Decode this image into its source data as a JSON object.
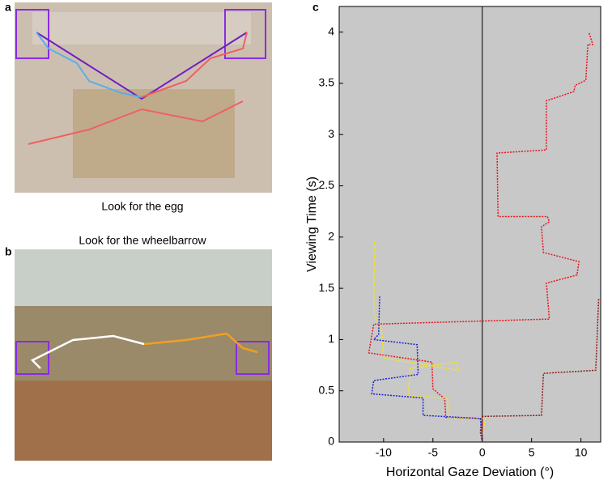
{
  "panels": {
    "a": {
      "label": "a",
      "caption": "Look for the egg"
    },
    "b": {
      "label": "b",
      "caption": "Look for the wheelbarrow"
    },
    "c": {
      "label": "c"
    }
  },
  "chart_data": {
    "type": "line",
    "xlabel": "Horizontal Gaze Deviation (°)",
    "ylabel": "Viewing Time (s)",
    "xlim": [
      -14.5,
      12
    ],
    "ylim": [
      0,
      4.25
    ],
    "xticks": [
      -10,
      -5,
      0,
      5,
      10
    ],
    "yticks": [
      0,
      0.5,
      1,
      1.5,
      2,
      2.5,
      3,
      3.5,
      4
    ],
    "series": [
      {
        "color": "#e8141b",
        "x": [
          0,
          0,
          -3.7,
          -3.8,
          -5,
          -5.1,
          -11.5,
          -11,
          6.8,
          6.5,
          9.6,
          9.8,
          6.2,
          6.0,
          6.8,
          6.6,
          1.6,
          1.5,
          6.5,
          6.5,
          9.3,
          9.4,
          10.5,
          10.7,
          11.2,
          10.8
        ],
        "values": [
          0.05,
          0.23,
          0.24,
          0.42,
          0.52,
          0.78,
          0.87,
          1.15,
          1.2,
          1.55,
          1.63,
          1.76,
          1.85,
          2.1,
          2.15,
          2.2,
          2.2,
          2.82,
          2.85,
          3.33,
          3.42,
          3.48,
          3.53,
          3.88,
          3.88,
          4.0
        ]
      },
      {
        "color": "#8b1a1a",
        "x": [
          0,
          -0.2,
          0,
          6,
          6.2,
          11.5,
          11.8
        ],
        "values": [
          0,
          0.1,
          0.25,
          0.26,
          0.67,
          0.7,
          1.4
        ]
      },
      {
        "color": "#f5e61a",
        "x": [
          0,
          0.3,
          -3.5,
          -3.5,
          -7.5,
          -7.3,
          -2.6,
          -2.4,
          -10,
          -10.2,
          -11,
          -10.9
        ],
        "values": [
          0.05,
          0.23,
          0.24,
          0.43,
          0.45,
          0.72,
          0.78,
          0.7,
          0.82,
          1.1,
          1.25,
          1.95
        ]
      },
      {
        "color": "#1a22d8",
        "x": [
          0,
          -0.2,
          -6,
          -6,
          -11.2,
          -11,
          -6.5,
          -6.6,
          -11,
          -10.5,
          -10.4
        ],
        "values": [
          0.05,
          0.23,
          0.26,
          0.43,
          0.47,
          0.6,
          0.66,
          0.95,
          1.0,
          1.05,
          1.42
        ]
      }
    ]
  }
}
